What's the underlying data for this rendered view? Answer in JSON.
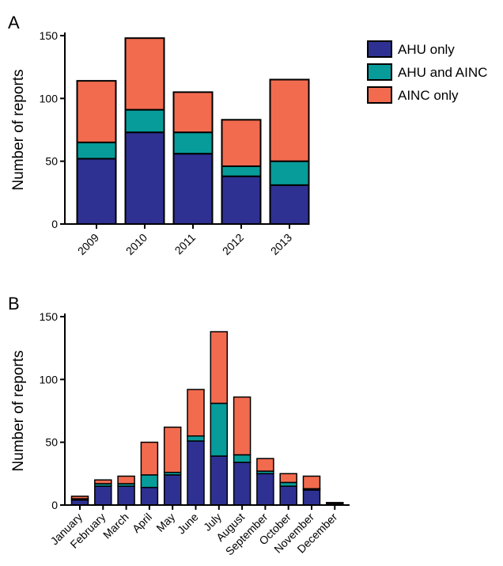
{
  "chart_data": [
    {
      "panel": "A",
      "type": "bar",
      "stacked": true,
      "categories": [
        "2009",
        "2010",
        "2011",
        "2012",
        "2013"
      ],
      "series": [
        {
          "name": "AHU only",
          "color": "#2e3192",
          "values": [
            52,
            73,
            56,
            38,
            31
          ]
        },
        {
          "name": "AHU and AINC",
          "color": "#079c9a",
          "values": [
            13,
            18,
            17,
            8,
            19
          ]
        },
        {
          "name": "AINC only",
          "color": "#f26b4f",
          "values": [
            49,
            57,
            32,
            37,
            65
          ]
        }
      ],
      "title": "",
      "xlabel": "",
      "ylabel": "Number of reports",
      "ylim": [
        0,
        150
      ],
      "yticks": [
        0,
        50,
        100,
        150
      ],
      "legend": "right",
      "grid": false
    },
    {
      "panel": "B",
      "type": "bar",
      "stacked": true,
      "categories": [
        "January",
        "February",
        "March",
        "April",
        "May",
        "June",
        "July",
        "August",
        "September",
        "October",
        "November",
        "December"
      ],
      "series": [
        {
          "name": "AHU only",
          "color": "#2e3192",
          "values": [
            4,
            15,
            15,
            14,
            24,
            51,
            39,
            34,
            25,
            15,
            12,
            1
          ]
        },
        {
          "name": "AHU and AINC",
          "color": "#079c9a",
          "values": [
            1,
            2,
            2,
            10,
            2,
            4,
            42,
            6,
            2,
            3,
            1,
            0
          ]
        },
        {
          "name": "AINC only",
          "color": "#f26b4f",
          "values": [
            2,
            3,
            6,
            26,
            36,
            37,
            57,
            46,
            10,
            7,
            10,
            1
          ]
        }
      ],
      "title": "",
      "xlabel": "",
      "ylabel": "Number of reports",
      "ylim": [
        0,
        150
      ],
      "yticks": [
        0,
        50,
        100,
        150
      ],
      "grid": false
    }
  ]
}
